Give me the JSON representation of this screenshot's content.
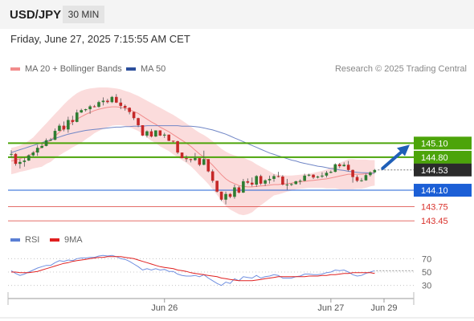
{
  "header": {
    "symbol": "USD/JPY",
    "timeframe": "30 MIN",
    "timestamp": "Friday, June 27, 2025 7:15:55 AM CET"
  },
  "legend": {
    "ma20": "MA 20 + Bollinger Bands",
    "ma50": "MA 50",
    "source": "Research © 2025 Trading Central",
    "rsi": "RSI",
    "rsi_ma": "9MA"
  },
  "colors": {
    "green": "#4ca40a",
    "blue": "#1c5fd6",
    "red": "#d9312b",
    "candle_up": "#2e7d32",
    "candle_down": "#c62828",
    "bands": "#fbd8d8",
    "ma20": "#f28c8c",
    "ma50": "#7086c6",
    "arrow": "#1f5fb8",
    "last": "#2b2b2b"
  },
  "chart_data": [
    {
      "type": "candlestick",
      "title": "USD/JPY",
      "timeframe": "30 MIN",
      "ylim": [
        143.3,
        146.4
      ],
      "x_ticks": [
        "Jun 26",
        "Jun 27",
        "Jun 29"
      ],
      "levels": [
        {
          "value": 145.1,
          "label": "145.10",
          "color": "green",
          "style": "resistance"
        },
        {
          "value": 144.8,
          "label": "144.80",
          "color": "green",
          "style": "resistance"
        },
        {
          "value": 144.53,
          "label": "144.53",
          "color": "last",
          "style": "last"
        },
        {
          "value": 144.1,
          "label": "144.10",
          "color": "blue",
          "style": "pivot"
        },
        {
          "value": 143.75,
          "label": "143.75",
          "color": "red",
          "style": "support"
        },
        {
          "value": 143.45,
          "label": "143.45",
          "color": "red",
          "style": "support"
        }
      ],
      "ohlc": [
        [
          144.86,
          144.95,
          144.8,
          144.87
        ],
        [
          144.87,
          144.89,
          144.62,
          144.66
        ],
        [
          144.66,
          144.76,
          144.56,
          144.7
        ],
        [
          144.7,
          144.79,
          144.6,
          144.73
        ],
        [
          144.73,
          144.86,
          144.72,
          144.84
        ],
        [
          144.84,
          144.93,
          144.82,
          144.9
        ],
        [
          144.9,
          145.06,
          144.83,
          145.0
        ],
        [
          145.0,
          145.09,
          144.99,
          145.04
        ],
        [
          145.04,
          145.2,
          145.03,
          145.16
        ],
        [
          145.16,
          145.21,
          145.14,
          145.17
        ],
        [
          145.17,
          145.41,
          145.16,
          145.36
        ],
        [
          145.36,
          145.51,
          145.35,
          145.47
        ],
        [
          145.47,
          145.56,
          145.35,
          145.39
        ],
        [
          145.39,
          145.66,
          145.32,
          145.59
        ],
        [
          145.59,
          145.68,
          145.48,
          145.55
        ],
        [
          145.55,
          145.81,
          145.54,
          145.75
        ],
        [
          145.75,
          145.83,
          145.74,
          145.8
        ],
        [
          145.8,
          145.83,
          145.77,
          145.82
        ],
        [
          145.82,
          145.91,
          145.72,
          145.88
        ],
        [
          145.88,
          145.91,
          145.86,
          145.87
        ],
        [
          145.87,
          146.0,
          145.85,
          145.97
        ],
        [
          145.97,
          146.07,
          145.9,
          146.0
        ],
        [
          146.0,
          146.04,
          145.94,
          145.97
        ],
        [
          145.97,
          146.1,
          145.95,
          146.08
        ],
        [
          146.08,
          146.14,
          145.95,
          145.96
        ],
        [
          145.96,
          146.05,
          145.82,
          145.89
        ],
        [
          145.89,
          145.92,
          145.79,
          145.85
        ],
        [
          145.85,
          145.86,
          145.71,
          145.76
        ],
        [
          145.76,
          145.77,
          145.59,
          145.63
        ],
        [
          145.63,
          145.64,
          145.44,
          145.48
        ],
        [
          145.48,
          145.48,
          145.25,
          145.26
        ],
        [
          145.26,
          145.37,
          145.22,
          145.35
        ],
        [
          145.35,
          145.4,
          145.22,
          145.24
        ],
        [
          145.24,
          145.37,
          145.23,
          145.37
        ],
        [
          145.37,
          145.37,
          145.25,
          145.26
        ],
        [
          145.26,
          145.32,
          145.21,
          145.28
        ],
        [
          145.28,
          145.28,
          145.14,
          145.15
        ],
        [
          145.15,
          145.15,
          145.11,
          145.14
        ],
        [
          145.14,
          145.15,
          144.87,
          144.9
        ],
        [
          144.9,
          144.9,
          144.78,
          144.78
        ],
        [
          144.78,
          144.84,
          144.7,
          144.76
        ],
        [
          144.76,
          144.77,
          144.69,
          144.74
        ],
        [
          144.74,
          144.89,
          144.72,
          144.78
        ],
        [
          144.78,
          144.78,
          144.61,
          144.64
        ],
        [
          144.64,
          144.94,
          144.63,
          144.76
        ],
        [
          144.76,
          144.76,
          144.48,
          144.5
        ],
        [
          144.5,
          144.54,
          144.26,
          144.3
        ],
        [
          144.3,
          144.3,
          144.05,
          144.07
        ],
        [
          144.07,
          144.07,
          143.87,
          143.9
        ],
        [
          143.9,
          144.07,
          143.8,
          144.02
        ],
        [
          144.02,
          144.04,
          143.93,
          143.96
        ],
        [
          143.96,
          144.22,
          143.92,
          144.16
        ],
        [
          144.16,
          144.19,
          144.03,
          144.05
        ],
        [
          144.05,
          144.34,
          144.04,
          144.29
        ],
        [
          144.29,
          144.35,
          144.23,
          144.26
        ],
        [
          144.26,
          144.37,
          144.18,
          144.22
        ],
        [
          144.22,
          144.42,
          144.17,
          144.4
        ],
        [
          144.4,
          144.43,
          144.21,
          144.24
        ],
        [
          144.24,
          144.33,
          144.19,
          144.31
        ],
        [
          144.31,
          144.41,
          144.24,
          144.34
        ],
        [
          144.34,
          144.44,
          144.28,
          144.4
        ],
        [
          144.4,
          144.49,
          144.37,
          144.39
        ],
        [
          144.39,
          144.42,
          144.2,
          144.22
        ],
        [
          144.22,
          144.34,
          144.11,
          144.22
        ],
        [
          144.22,
          144.25,
          144.19,
          144.23
        ],
        [
          144.23,
          144.3,
          144.22,
          144.29
        ],
        [
          144.29,
          144.33,
          144.22,
          144.3
        ],
        [
          144.3,
          144.45,
          144.29,
          144.41
        ],
        [
          144.41,
          144.45,
          144.39,
          144.43
        ],
        [
          144.43,
          144.44,
          144.34,
          144.37
        ],
        [
          144.37,
          144.41,
          144.35,
          144.39
        ],
        [
          144.39,
          144.48,
          144.36,
          144.41
        ],
        [
          144.41,
          144.51,
          144.37,
          144.47
        ],
        [
          144.47,
          144.52,
          144.46,
          144.49
        ],
        [
          144.49,
          144.67,
          144.48,
          144.65
        ],
        [
          144.65,
          144.68,
          144.57,
          144.61
        ],
        [
          144.61,
          144.69,
          144.6,
          144.64
        ],
        [
          144.64,
          144.72,
          144.5,
          144.53
        ],
        [
          144.53,
          144.54,
          144.26,
          144.38
        ],
        [
          144.38,
          144.42,
          144.27,
          144.3
        ],
        [
          144.3,
          144.36,
          144.28,
          144.31
        ],
        [
          144.31,
          144.45,
          144.3,
          144.42
        ],
        [
          144.42,
          144.5,
          144.39,
          144.48
        ],
        [
          144.48,
          144.55,
          144.47,
          144.53
        ]
      ],
      "ma20": [
        144.72,
        144.74,
        144.77,
        144.8,
        144.84,
        144.89,
        144.95,
        145.01,
        145.09,
        145.16,
        145.25,
        145.33,
        145.41,
        145.48,
        145.55,
        145.61,
        145.66,
        145.71,
        145.75,
        145.79,
        145.82,
        145.84,
        145.86,
        145.87,
        145.87,
        145.86,
        145.84,
        145.81,
        145.77,
        145.73,
        145.67,
        145.61,
        145.55,
        145.5,
        145.44,
        145.39,
        145.34,
        145.28,
        145.22,
        145.16,
        145.1,
        145.03,
        144.95,
        144.87,
        144.8,
        144.72,
        144.63,
        144.53,
        144.43,
        144.34,
        144.28,
        144.24,
        144.2,
        144.18,
        144.17,
        144.17,
        144.18,
        144.19,
        144.2,
        144.21,
        144.22,
        144.22,
        144.23,
        144.24,
        144.25,
        144.27,
        144.28,
        144.29,
        144.3,
        144.31,
        144.32,
        144.33,
        144.34,
        144.36,
        144.38,
        144.4,
        144.42,
        144.44,
        144.44,
        144.44,
        144.44,
        144.45,
        144.46,
        144.47
      ],
      "ma50": [
        144.9,
        144.93,
        144.96,
        144.99,
        145.02,
        145.05,
        145.08,
        145.11,
        145.14,
        145.17,
        145.2,
        145.23,
        145.26,
        145.29,
        145.31,
        145.33,
        145.35,
        145.37,
        145.38,
        145.39,
        145.4,
        145.41,
        145.42,
        145.43,
        145.44,
        145.44,
        145.45,
        145.45,
        145.46,
        145.46,
        145.46,
        145.47,
        145.47,
        145.47,
        145.47,
        145.47,
        145.47,
        145.47,
        145.47,
        145.46,
        145.46,
        145.46,
        145.45,
        145.44,
        145.42,
        145.4,
        145.38,
        145.35,
        145.32,
        145.29,
        145.25,
        145.21,
        145.17,
        145.13,
        145.09,
        145.05,
        145.01,
        144.97,
        144.93,
        144.89,
        144.86,
        144.83,
        144.8,
        144.77,
        144.74,
        144.72,
        144.69,
        144.67,
        144.65,
        144.63,
        144.61,
        144.6,
        144.58,
        144.56,
        144.55,
        144.53,
        144.52,
        144.5,
        144.49,
        144.48,
        144.47,
        144.47,
        144.46,
        144.46
      ],
      "bb_upper": [
        145.0,
        145.02,
        145.05,
        145.09,
        145.15,
        145.22,
        145.32,
        145.42,
        145.52,
        145.62,
        145.72,
        145.82,
        145.92,
        146.01,
        146.09,
        146.16,
        146.21,
        146.24,
        146.26,
        146.27,
        146.28,
        146.28,
        146.28,
        146.27,
        146.26,
        146.24,
        146.21,
        146.18,
        146.14,
        146.1,
        146.05,
        146.0,
        145.95,
        145.9,
        145.85,
        145.8,
        145.75,
        145.7,
        145.64,
        145.58,
        145.52,
        145.45,
        145.38,
        145.32,
        145.27,
        145.21,
        145.14,
        145.06,
        144.98,
        144.92,
        144.87,
        144.84,
        144.81,
        144.79,
        144.75,
        144.71,
        144.65,
        144.6,
        144.55,
        144.5,
        144.45,
        144.43,
        144.42,
        144.41,
        144.41,
        144.42,
        144.43,
        144.44,
        144.45,
        144.47,
        144.49,
        144.51,
        144.54,
        144.58,
        144.62,
        144.68,
        144.72,
        144.76,
        144.76,
        144.75,
        144.75,
        144.75,
        144.74,
        144.74
      ],
      "bb_lower": [
        144.44,
        144.46,
        144.49,
        144.51,
        144.53,
        144.56,
        144.58,
        144.6,
        144.66,
        144.7,
        144.78,
        144.84,
        144.9,
        144.95,
        145.01,
        145.06,
        145.11,
        145.18,
        145.24,
        145.31,
        145.36,
        145.4,
        145.44,
        145.47,
        145.48,
        145.48,
        145.47,
        145.44,
        145.4,
        145.36,
        145.29,
        145.22,
        145.15,
        145.1,
        145.03,
        144.98,
        144.93,
        144.86,
        144.8,
        144.74,
        144.68,
        144.61,
        144.52,
        144.42,
        144.33,
        144.23,
        144.12,
        144.0,
        143.88,
        143.76,
        143.69,
        143.64,
        143.59,
        143.57,
        143.59,
        143.63,
        143.71,
        143.78,
        143.85,
        143.92,
        143.99,
        144.01,
        144.04,
        144.07,
        144.09,
        144.12,
        144.13,
        144.14,
        144.15,
        144.15,
        144.15,
        144.15,
        144.14,
        144.14,
        144.14,
        144.12,
        144.12,
        144.12,
        144.12,
        144.13,
        144.13,
        144.15,
        144.18,
        144.2
      ]
    },
    {
      "type": "line",
      "title": "RSI",
      "ylim": [
        20,
        80
      ],
      "y_ticks": [
        "70",
        "50",
        "30"
      ],
      "series": [
        {
          "name": "RSI",
          "values": [
            52,
            48,
            45,
            47,
            50,
            53,
            56,
            58,
            60,
            60,
            64,
            67,
            66,
            68,
            67,
            70,
            71,
            71,
            72,
            72,
            74,
            75,
            74,
            75,
            73,
            70,
            69,
            66,
            62,
            58,
            53,
            55,
            53,
            55,
            53,
            54,
            51,
            51,
            47,
            45,
            44,
            44,
            45,
            43,
            46,
            41,
            37,
            33,
            30,
            35,
            33,
            40,
            37,
            43,
            42,
            41,
            45,
            41,
            43,
            44,
            46,
            45,
            41,
            41,
            41,
            43,
            44,
            47,
            47,
            46,
            46,
            47,
            49,
            50,
            53,
            52,
            53,
            50,
            46,
            44,
            45,
            48,
            50,
            52
          ]
        },
        {
          "name": "9MA",
          "values": [
            50,
            50,
            49,
            49,
            49,
            50,
            51,
            53,
            55,
            57,
            59,
            61,
            63,
            64,
            66,
            67,
            68,
            69,
            70,
            71,
            72,
            72,
            73,
            73,
            73,
            73,
            72,
            71,
            70,
            68,
            66,
            64,
            62,
            60,
            58,
            57,
            56,
            55,
            53,
            52,
            51,
            49,
            48,
            47,
            46,
            45,
            44,
            43,
            41,
            40,
            39,
            38,
            37,
            37,
            37,
            37,
            38,
            39,
            40,
            41,
            42,
            43,
            43,
            43,
            43,
            43,
            43,
            43,
            44,
            44,
            44,
            45,
            45,
            46,
            46,
            47,
            48,
            48,
            49,
            49,
            49,
            49,
            49,
            48
          ]
        }
      ]
    }
  ]
}
